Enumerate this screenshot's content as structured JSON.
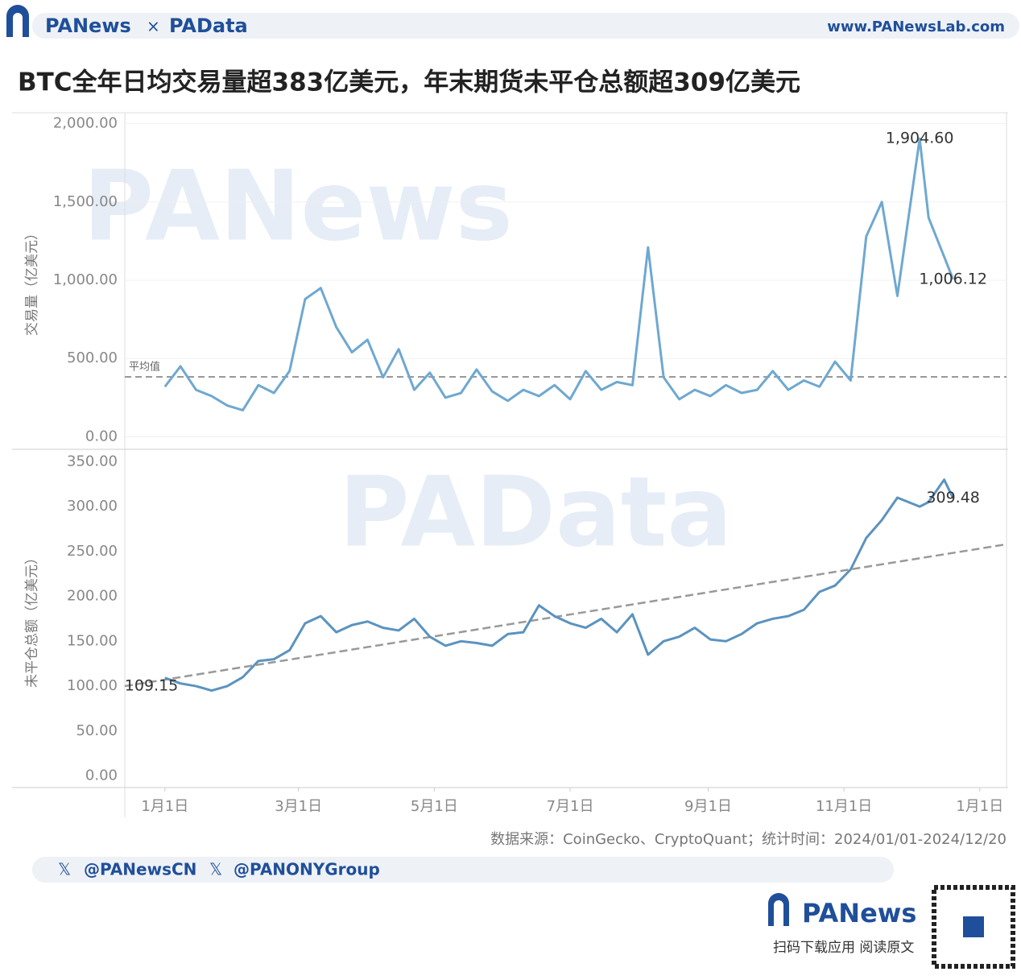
{
  "header": {
    "brand": "PANews",
    "cross": "×",
    "brand2": "PAData",
    "url": "www.PANewsLab.com"
  },
  "title": "BTC全年日均交易量超383亿美元，年末期货未平仓总额超309亿美元",
  "watermarks": [
    "PANews",
    "PAData"
  ],
  "chart_data": [
    {
      "type": "line",
      "y_label": "交易量（亿美元）",
      "x": [
        "2024-01-01",
        "2024-01-08",
        "2024-01-15",
        "2024-01-22",
        "2024-01-29",
        "2024-02-05",
        "2024-02-12",
        "2024-02-19",
        "2024-02-26",
        "2024-03-04",
        "2024-03-11",
        "2024-03-18",
        "2024-03-25",
        "2024-04-01",
        "2024-04-08",
        "2024-04-15",
        "2024-04-22",
        "2024-04-29",
        "2024-05-06",
        "2024-05-13",
        "2024-05-20",
        "2024-05-27",
        "2024-06-03",
        "2024-06-10",
        "2024-06-17",
        "2024-06-24",
        "2024-07-01",
        "2024-07-08",
        "2024-07-15",
        "2024-07-22",
        "2024-07-29",
        "2024-08-05",
        "2024-08-12",
        "2024-08-19",
        "2024-08-26",
        "2024-09-02",
        "2024-09-09",
        "2024-09-16",
        "2024-09-23",
        "2024-09-30",
        "2024-10-07",
        "2024-10-14",
        "2024-10-21",
        "2024-10-28",
        "2024-11-04",
        "2024-11-11",
        "2024-11-18",
        "2024-11-25",
        "2024-12-05",
        "2024-12-09",
        "2024-12-16",
        "2024-12-20"
      ],
      "series": [
        {
          "name": "交易量",
          "color": "#6fa8d0",
          "values": [
            320,
            450,
            300,
            260,
            200,
            170,
            330,
            280,
            420,
            880,
            950,
            700,
            540,
            620,
            380,
            560,
            300,
            410,
            250,
            280,
            430,
            290,
            230,
            300,
            260,
            330,
            240,
            420,
            300,
            350,
            330,
            1210,
            380,
            240,
            300,
            260,
            330,
            280,
            300,
            420,
            300,
            360,
            320,
            480,
            360,
            1280,
            1500,
            900,
            1904.6,
            1400,
            1150,
            1006.12
          ],
          "value_labels": [
            null,
            null,
            null,
            null,
            null,
            null,
            null,
            null,
            null,
            null,
            null,
            null,
            null,
            null,
            null,
            null,
            null,
            null,
            null,
            null,
            null,
            null,
            null,
            null,
            null,
            null,
            null,
            null,
            null,
            null,
            null,
            null,
            null,
            null,
            null,
            null,
            null,
            null,
            null,
            null,
            null,
            null,
            null,
            null,
            null,
            null,
            null,
            null,
            "1,904.60",
            null,
            null,
            "1,006.12"
          ]
        }
      ],
      "mean": {
        "value": 383,
        "label": "平均值"
      },
      "xlim": [
        "2023-12-14",
        "2025-01-13"
      ],
      "ylim": [
        -80,
        2070
      ],
      "yticks": [
        {
          "value": 0,
          "label": "0.00"
        },
        {
          "value": 500,
          "label": "500.00"
        },
        {
          "value": 1000,
          "label": "1,000.00"
        },
        {
          "value": 1500,
          "label": "1,500.00"
        },
        {
          "value": 2000,
          "label": "2,000.00"
        }
      ],
      "grid": true
    },
    {
      "type": "line",
      "y_label": "未平仓总额（亿美元）",
      "x": [
        "2024-01-01",
        "2024-01-08",
        "2024-01-15",
        "2024-01-22",
        "2024-01-29",
        "2024-02-05",
        "2024-02-12",
        "2024-02-19",
        "2024-02-26",
        "2024-03-04",
        "2024-03-11",
        "2024-03-18",
        "2024-03-25",
        "2024-04-01",
        "2024-04-08",
        "2024-04-15",
        "2024-04-22",
        "2024-04-29",
        "2024-05-06",
        "2024-05-13",
        "2024-05-20",
        "2024-05-27",
        "2024-06-03",
        "2024-06-10",
        "2024-06-17",
        "2024-06-24",
        "2024-07-01",
        "2024-07-08",
        "2024-07-15",
        "2024-07-22",
        "2024-07-29",
        "2024-08-05",
        "2024-08-12",
        "2024-08-19",
        "2024-08-26",
        "2024-09-02",
        "2024-09-09",
        "2024-09-16",
        "2024-09-23",
        "2024-09-30",
        "2024-10-07",
        "2024-10-14",
        "2024-10-21",
        "2024-10-28",
        "2024-11-04",
        "2024-11-11",
        "2024-11-18",
        "2024-11-25",
        "2024-12-05",
        "2024-12-09",
        "2024-12-16",
        "2024-12-20"
      ],
      "series": [
        {
          "name": "未平仓总额",
          "color": "#5b93bf",
          "values": [
            109.15,
            103,
            100,
            95,
            100,
            110,
            128,
            130,
            140,
            170,
            178,
            160,
            168,
            172,
            165,
            162,
            175,
            155,
            145,
            150,
            148,
            145,
            158,
            160,
            190,
            178,
            170,
            165,
            175,
            160,
            180,
            135,
            150,
            155,
            165,
            152,
            150,
            158,
            170,
            175,
            178,
            185,
            205,
            212,
            230,
            265,
            285,
            310,
            300,
            305,
            330,
            309.48
          ],
          "value_labels": [
            "109.15",
            null,
            null,
            null,
            null,
            null,
            null,
            null,
            null,
            null,
            null,
            null,
            null,
            null,
            null,
            null,
            null,
            null,
            null,
            null,
            null,
            null,
            null,
            null,
            null,
            null,
            null,
            null,
            null,
            null,
            null,
            null,
            null,
            null,
            null,
            null,
            null,
            null,
            null,
            null,
            null,
            null,
            null,
            null,
            null,
            null,
            null,
            null,
            null,
            null,
            null,
            "309.48"
          ]
        }
      ],
      "trend": [
        100,
        258
      ],
      "xlim": [
        "2023-12-14",
        "2025-01-13"
      ],
      "ylim": [
        -13,
        362
      ],
      "yticks": [
        {
          "value": 0,
          "label": "0.00"
        },
        {
          "value": 50,
          "label": "50.00"
        },
        {
          "value": 100,
          "label": "100.00"
        },
        {
          "value": 150,
          "label": "150.00"
        },
        {
          "value": 200,
          "label": "200.00"
        },
        {
          "value": 250,
          "label": "250.00"
        },
        {
          "value": 300,
          "label": "300.00"
        },
        {
          "value": 350,
          "label": "350.00"
        }
      ],
      "xticks": [
        {
          "value": "2024-01-01",
          "label": "1月1日"
        },
        {
          "value": "2024-03-01",
          "label": "3月1日"
        },
        {
          "value": "2024-05-01",
          "label": "5月1日"
        },
        {
          "value": "2024-07-01",
          "label": "7月1日"
        },
        {
          "value": "2024-09-01",
          "label": "9月1日"
        },
        {
          "value": "2024-11-01",
          "label": "11月1日"
        },
        {
          "value": "2025-01-01",
          "label": "1月1日"
        }
      ],
      "grid": false
    }
  ],
  "source": "数据来源：CoinGecko、CryptoQuant；统计时间：2024/01/01-2024/12/20",
  "social": [
    "@PANewsCN",
    "@PANONYGroup"
  ],
  "footer": {
    "brand": "PANews",
    "caption": "扫码下载应用  阅读原文"
  }
}
